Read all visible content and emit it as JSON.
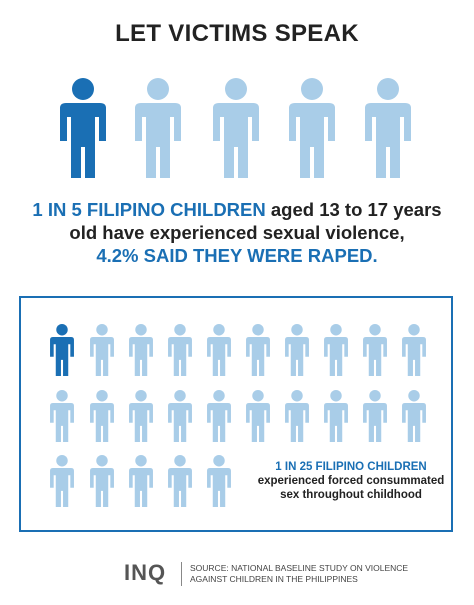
{
  "title": "LET VICTIMS SPEAK",
  "stat1": {
    "highlight_a": "1 IN 5 FILIPINO CHILDREN",
    "text_a": " aged 13 to 17 years",
    "text_b": "old have experienced sexual violence,",
    "highlight_b": "4.2% SAID THEY WERE RAPED."
  },
  "stat2": {
    "highlight": "1 IN 25 FILIPINO CHILDREN",
    "text_a": "experienced forced consummated",
    "text_b": "sex throughout childhood"
  },
  "footer": {
    "logo": "INQ",
    "source_line1": "SOURCE: NATIONAL BASELINE STUDY ON VIOLENCE",
    "source_line2": "AGAINST CHILDREN IN THE PHILIPPINES"
  },
  "colors": {
    "highlight": "#1a6fb4",
    "light_figure": "#a9cde8",
    "text": "#222222"
  },
  "figures": {
    "big_row_total": 5,
    "big_row_highlighted": 1,
    "box_total": 25,
    "box_highlighted": 1,
    "icon": "person-icon"
  }
}
